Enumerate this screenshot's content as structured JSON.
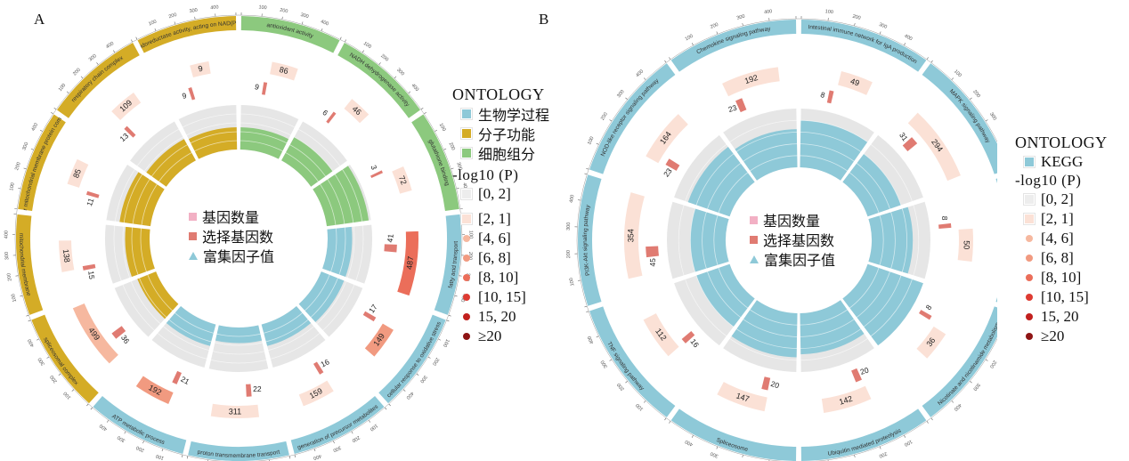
{
  "panels": [
    {
      "label": "A"
    },
    {
      "label": "B"
    }
  ],
  "legend_A": {
    "ontology_title": "ONTOLOGY",
    "ontology_items": [
      {
        "label": "生物学过程",
        "color": "#8ec9d8"
      },
      {
        "label": "分子功能",
        "color": "#d4ac26"
      },
      {
        "label": "细胞组分",
        "color": "#8cc97e"
      }
    ],
    "p_title": "-log10 (P)",
    "p_items": [
      {
        "label": "[0, 2]",
        "color": "#ededed",
        "shape": "square"
      },
      {
        "label": "[2, 1]",
        "color": "#fbe1d6",
        "shape": "square"
      },
      {
        "label": "[4, 6]",
        "color": "#f6b89f",
        "shape": "dot"
      },
      {
        "label": "[6, 8]",
        "color": "#f19a80",
        "shape": "dot"
      },
      {
        "label": "[8, 10]",
        "color": "#eb6e5a",
        "shape": "dot"
      },
      {
        "label": "[10, 15]",
        "color": "#de3b32",
        "shape": "dot"
      },
      {
        "label": "15, 20",
        "color": "#c2201e",
        "shape": "dot"
      },
      {
        "label": "≥20",
        "color": "#8e1414",
        "shape": "dot"
      }
    ]
  },
  "legend_B": {
    "ontology_title": "ONTOLOGY",
    "ontology_items": [
      {
        "label": "KEGG",
        "color": "#8ec9d8"
      }
    ],
    "p_title": "-log10 (P)",
    "p_items": [
      {
        "label": "[0, 2]",
        "color": "#ededed",
        "shape": "square"
      },
      {
        "label": "[2, 1]",
        "color": "#fbe1d6",
        "shape": "square"
      },
      {
        "label": "[4, 6]",
        "color": "#f6b89f",
        "shape": "dot"
      },
      {
        "label": "[6, 8]",
        "color": "#f19a80",
        "shape": "dot"
      },
      {
        "label": "[8, 10]",
        "color": "#eb6e5a",
        "shape": "dot"
      },
      {
        "label": "[10, 15]",
        "color": "#de3b32",
        "shape": "dot"
      },
      {
        "label": "15, 20",
        "color": "#c2201e",
        "shape": "dot"
      },
      {
        "label": "≥20",
        "color": "#8e1414",
        "shape": "dot"
      }
    ]
  },
  "inner_legend": {
    "gene_count": "基因数量",
    "selected_genes": "选择基因数",
    "rich_factor": "富集因子值",
    "colors": {
      "gene_count": "#f2b0c4",
      "selected_genes": "#e07b72",
      "rich_factor": "#8ec9d8"
    }
  },
  "chart_data": [
    {
      "type": "circular-enrichment",
      "panel": "A",
      "categories": [
        "antioxidant activity",
        "NADH dehydrogenase activity",
        "glutathione binding",
        "fatty acid transport",
        "cellular response to oxidative stress",
        "generation of precursor metabolites",
        "proton transmembrane transport",
        "ATP metabolic process",
        "spliceosomal complex",
        "mitochondrial membrane",
        "inner mitochondrial membrane protein complex",
        "respiratory chain complex",
        "oxidoreductase activity, acting on NAD(P)H"
      ],
      "ontology": [
        "CC",
        "CC",
        "CC",
        "BP",
        "BP",
        "BP",
        "BP",
        "BP",
        "MF",
        "MF",
        "MF",
        "MF",
        "MF"
      ],
      "gene_count": [
        86,
        46,
        72,
        487,
        149,
        159,
        311,
        192,
        499,
        138,
        85,
        109,
        9
      ],
      "selected_genes": [
        9,
        6,
        3,
        41,
        17,
        16,
        22,
        21,
        36,
        15,
        11,
        13,
        9
      ],
      "p_bin": [
        1,
        1,
        1,
        4,
        3,
        1,
        1,
        3,
        2,
        1,
        1,
        1,
        1
      ],
      "rich_factor": [
        0.5,
        0.6,
        0.95,
        0.55,
        0.55,
        0.5,
        0.35,
        0.5,
        0.45,
        0.55,
        0.7,
        0.55,
        0.5
      ]
    },
    {
      "type": "circular-enrichment",
      "panel": "B",
      "categories": [
        "Intestinal immune network for IgA production",
        "MAPK signaling pathway",
        "Chemokine metabolism",
        "Nicotinate and nicotinamide metabolism",
        "Ubiquitin mediated proteolysis",
        "Spliceosome",
        "TNF signaling pathway",
        "PI3K-Akt signaling pathway",
        "NOD-like receptor signaling pathway",
        "Chemokine signaling pathway"
      ],
      "ontology": [
        "KEGG",
        "KEGG",
        "KEGG",
        "KEGG",
        "KEGG",
        "KEGG",
        "KEGG",
        "KEGG",
        "KEGG",
        "KEGG"
      ],
      "gene_count": [
        49,
        294,
        50,
        36,
        142,
        147,
        112,
        354,
        164,
        192
      ],
      "selected_genes": [
        8,
        31,
        8,
        8,
        20,
        20,
        16,
        45,
        23,
        23
      ],
      "p_bin": [
        1,
        1,
        1,
        1,
        1,
        1,
        1,
        1,
        1,
        1
      ],
      "rich_factor": [
        0.8,
        0.6,
        0.7,
        1.0,
        0.7,
        0.75,
        0.6,
        0.6,
        0.75,
        0.65
      ]
    }
  ]
}
